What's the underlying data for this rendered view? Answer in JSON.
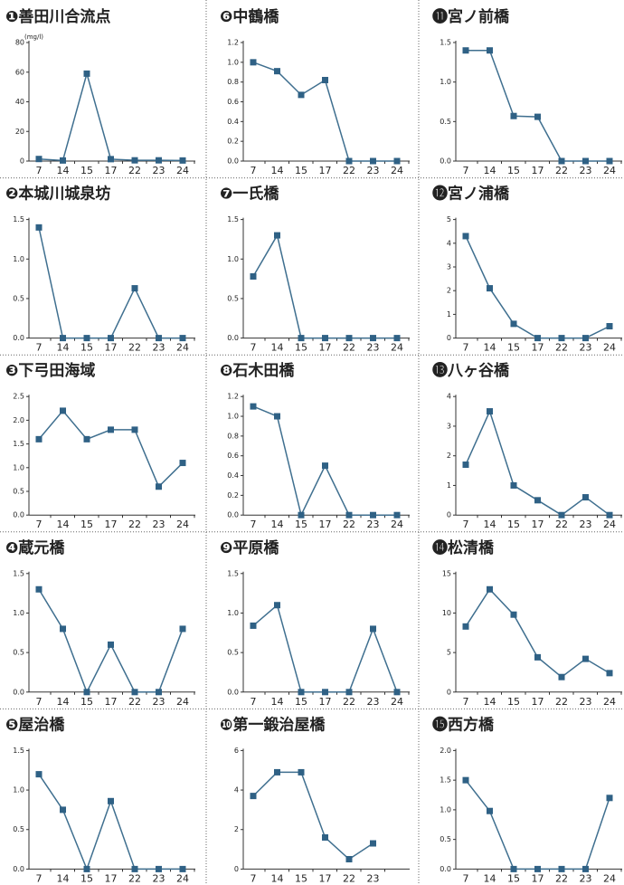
{
  "chart_data": [
    {
      "type": "line",
      "title": "❶善田川合流点",
      "unit": "(mg/l)",
      "categories": [
        "7",
        "14",
        "15",
        "17",
        "22",
        "23",
        "24"
      ],
      "values": [
        1.4,
        0.4,
        59,
        1.3,
        0.5,
        0.5,
        0.4
      ],
      "color": "#3f6f8f",
      "ylim": [
        0,
        80
      ],
      "yticks": [
        0,
        20,
        40,
        60,
        80
      ]
    },
    {
      "type": "line",
      "title": "❷本城川城泉坊",
      "categories": [
        "7",
        "14",
        "15",
        "17",
        "22",
        "23",
        "24"
      ],
      "values": [
        1.4,
        0,
        0,
        0,
        0.63,
        0,
        0
      ],
      "color": "#3f6f8f",
      "ylim": [
        0,
        1.5
      ],
      "yticks": [
        {
          "value": 0,
          "label": "0.0"
        },
        0.5,
        {
          "value": 1,
          "label": "1.0"
        },
        1.5
      ]
    },
    {
      "type": "line",
      "title": "❸下弓田海域",
      "categories": [
        "7",
        "14",
        "15",
        "17",
        "22",
        "23",
        "24"
      ],
      "values": [
        1.6,
        2.2,
        1.6,
        1.8,
        1.8,
        0.6,
        1.1
      ],
      "color": "#3f6f8f",
      "ylim": [
        0,
        2.5
      ],
      "yticks": [
        {
          "value": 0,
          "label": "0.0"
        },
        0.5,
        {
          "value": 1,
          "label": "1.0"
        },
        1.5,
        {
          "value": 2,
          "label": "2.0"
        },
        2.5
      ]
    },
    {
      "type": "line",
      "title": "❹蔵元橋",
      "categories": [
        "7",
        "14",
        "15",
        "17",
        "22",
        "23",
        "24"
      ],
      "values": [
        1.3,
        0.8,
        0,
        0.6,
        0,
        0,
        0.8
      ],
      "color": "#3f6f8f",
      "ylim": [
        0,
        1.5
      ],
      "yticks": [
        {
          "value": 0,
          "label": "0.0"
        },
        0.5,
        {
          "value": 1,
          "label": "1.0"
        },
        1.5
      ]
    },
    {
      "type": "line",
      "title": "❺屋治橋",
      "categories": [
        "7",
        "14",
        "15",
        "17",
        "22",
        "23",
        "24"
      ],
      "values": [
        1.2,
        0.75,
        0,
        0.86,
        0,
        0,
        0
      ],
      "color": "#3f6f8f",
      "ylim": [
        0,
        1.5
      ],
      "yticks": [
        {
          "value": 0,
          "label": "0.0"
        },
        0.5,
        {
          "value": 1,
          "label": "1.0"
        },
        1.5
      ]
    },
    {
      "type": "line",
      "title": "❻中鶴橋",
      "categories": [
        "7",
        "14",
        "15",
        "17",
        "22",
        "23",
        "24"
      ],
      "values": [
        1.0,
        0.91,
        0.67,
        0.82,
        0,
        0,
        0
      ],
      "color": "#3f6f8f",
      "ylim": [
        0,
        1.2
      ],
      "yticks": [
        {
          "value": 0,
          "label": "0.0"
        },
        0.2,
        0.4,
        0.6,
        0.8,
        {
          "value": 1,
          "label": "1.0"
        },
        1.2
      ]
    },
    {
      "type": "line",
      "title": "❼一氏橋",
      "categories": [
        "7",
        "14",
        "15",
        "17",
        "22",
        "23",
        "24"
      ],
      "values": [
        0.78,
        1.3,
        0,
        0,
        0,
        0,
        0
      ],
      "color": "#3f6f8f",
      "ylim": [
        0,
        1.5
      ],
      "yticks": [
        {
          "value": 0,
          "label": "0.0"
        },
        0.5,
        {
          "value": 1,
          "label": "1.0"
        },
        1.5
      ]
    },
    {
      "type": "line",
      "title": "❽石木田橋",
      "categories": [
        "7",
        "14",
        "15",
        "17",
        "22",
        "23",
        "24"
      ],
      "values": [
        1.1,
        1.0,
        0,
        0.5,
        0,
        0,
        0
      ],
      "color": "#3f6f8f",
      "ylim": [
        0,
        1.2
      ],
      "yticks": [
        {
          "value": 0,
          "label": "0.0"
        },
        0.2,
        0.4,
        0.6,
        0.8,
        {
          "value": 1,
          "label": "1.0"
        },
        1.2
      ]
    },
    {
      "type": "line",
      "title": "❾平原橋",
      "categories": [
        "7",
        "14",
        "15",
        "17",
        "22",
        "23",
        "24"
      ],
      "values": [
        0.84,
        1.1,
        0,
        0,
        0,
        0.8,
        0
      ],
      "color": "#3f6f8f",
      "ylim": [
        0,
        1.5
      ],
      "yticks": [
        {
          "value": 0,
          "label": "0.0"
        },
        0.5,
        {
          "value": 1,
          "label": "1.0"
        },
        1.5
      ]
    },
    {
      "type": "line",
      "title": "❿第一鍛治屋橋",
      "categories": [
        "7",
        "14",
        "15",
        "17",
        "22",
        "23"
      ],
      "values": [
        3.7,
        4.9,
        4.9,
        1.6,
        0.5,
        1.3
      ],
      "color": "#3f6f8f",
      "ylim": [
        0,
        6
      ],
      "yticks": [
        0,
        2,
        4,
        6
      ]
    },
    {
      "type": "line",
      "title": "⓫宮ノ前橋",
      "categories": [
        "7",
        "14",
        "15",
        "17",
        "22",
        "23",
        "24"
      ],
      "values": [
        1.4,
        1.4,
        0.57,
        0.56,
        0,
        0,
        0
      ],
      "color": "#3f6f8f",
      "ylim": [
        0,
        1.5
      ],
      "yticks": [
        {
          "value": 0,
          "label": "0.0"
        },
        0.5,
        {
          "value": 1,
          "label": "1.0"
        },
        1.5
      ]
    },
    {
      "type": "line",
      "title": "⓬宮ノ浦橋",
      "categories": [
        "7",
        "14",
        "15",
        "17",
        "22",
        "23",
        "24"
      ],
      "values": [
        4.3,
        2.1,
        0.6,
        0,
        0,
        0,
        0.5
      ],
      "color": "#3f6f8f",
      "ylim": [
        0,
        5
      ],
      "yticks": [
        0,
        1,
        2,
        3,
        4,
        5
      ]
    },
    {
      "type": "line",
      "title": "⓭八ヶ谷橋",
      "categories": [
        "7",
        "14",
        "15",
        "17",
        "22",
        "23",
        "24"
      ],
      "values": [
        1.7,
        3.5,
        1.0,
        0.5,
        0,
        0.6,
        0
      ],
      "color": "#3f6f8f",
      "ylim": [
        0,
        4
      ],
      "yticks": [
        0,
        1,
        2,
        3,
        4
      ]
    },
    {
      "type": "line",
      "title": "⓮松清橋",
      "categories": [
        "7",
        "14",
        "15",
        "17",
        "22",
        "23",
        "24"
      ],
      "values": [
        8.3,
        13,
        9.8,
        4.4,
        1.9,
        4.2,
        2.4
      ],
      "color": "#3f6f8f",
      "ylim": [
        0,
        15
      ],
      "yticks": [
        0,
        5,
        10,
        15
      ]
    },
    {
      "type": "line",
      "title": "⓯西方橋",
      "categories": [
        "7",
        "14",
        "15",
        "17",
        "22",
        "23",
        "24"
      ],
      "values": [
        1.5,
        0.98,
        0,
        0,
        0,
        0,
        1.2
      ],
      "color": "#3f6f8f",
      "ylim": [
        0,
        2
      ],
      "yticks": [
        {
          "value": 0,
          "label": "0.0"
        },
        0.5,
        {
          "value": 1,
          "label": "1.0"
        },
        1.5,
        {
          "value": 2,
          "label": "2.0"
        }
      ]
    }
  ]
}
